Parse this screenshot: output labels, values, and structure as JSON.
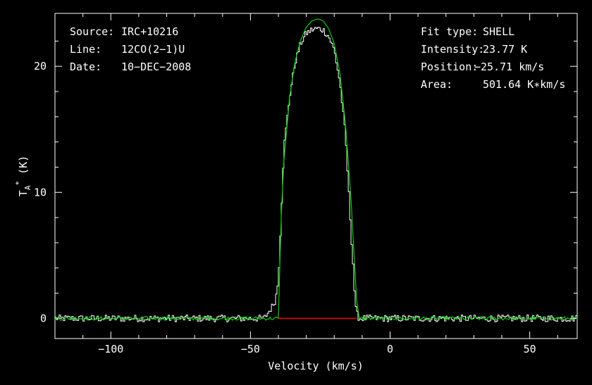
{
  "chart_data": {
    "type": "line",
    "xlabel": "Velocity (km/s)",
    "ylabel": "T_A* (K)",
    "xlim": [
      -120,
      67
    ],
    "ylim": [
      -1.6,
      24.2
    ],
    "x_ticks": [
      -100,
      -50,
      0,
      50
    ],
    "x_tick_labels": [
      "−100",
      "−50",
      "0",
      "50"
    ],
    "y_ticks": [
      0,
      10,
      20
    ],
    "y_tick_labels": [
      "0",
      "10",
      "20"
    ],
    "grid": false,
    "series": [
      {
        "kind": "observed",
        "color": "#ffffff",
        "x": [
          -120,
          -45,
          -42,
          -41,
          -40,
          -39,
          -38,
          -36,
          -34,
          -32,
          -30,
          -28,
          -26,
          -24,
          -22,
          -20,
          -18,
          -16,
          -14,
          -13,
          -12.5,
          -12,
          -11,
          67
        ],
        "y": [
          0,
          0,
          1.0,
          1.5,
          3.0,
          8.0,
          13.5,
          17.5,
          20.3,
          21.8,
          22.6,
          22.9,
          23.0,
          22.9,
          22.4,
          21.3,
          18.8,
          14.6,
          7.0,
          3.5,
          1.0,
          0.4,
          0,
          0
        ]
      },
      {
        "kind": "shell-fit",
        "color": "#00d000",
        "x": [
          -120,
          -40,
          -39,
          -38,
          -36,
          -34,
          -32,
          -30,
          -28,
          -26,
          -25.71,
          -24,
          -22,
          -20,
          -18,
          -16,
          -14,
          -13,
          -12,
          -11,
          67
        ],
        "y": [
          0,
          0,
          8.0,
          12.5,
          17.5,
          20.4,
          22.1,
          23.1,
          23.6,
          23.75,
          23.77,
          23.6,
          23.0,
          21.8,
          19.5,
          15.5,
          9.5,
          5.5,
          1.5,
          0,
          0
        ]
      },
      {
        "kind": "baseline",
        "color": "#ff0000",
        "x": [
          -40,
          -12
        ],
        "y": [
          0,
          0
        ]
      }
    ]
  },
  "info_left": {
    "source_label": "Source:",
    "source_value": "IRC+10216",
    "line_label": "Line:",
    "line_value": "12CO(2−1)U",
    "date_label": "Date:",
    "date_value": "10−DEC−2008"
  },
  "info_right": {
    "fit_label": "Fit type:",
    "fit_value": "SHELL",
    "intensity_label": "Intensity:",
    "intensity_value": "23.77 K",
    "position_label": "Position:",
    "position_value": "−25.71 km/s",
    "area_label": "Area:",
    "area_value": "501.64 K∗km/s"
  }
}
